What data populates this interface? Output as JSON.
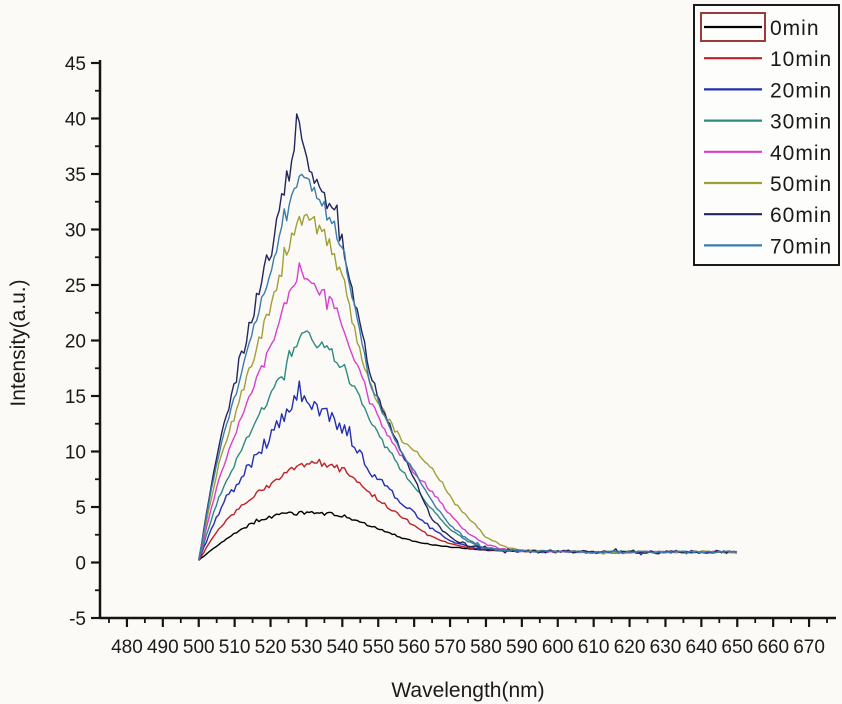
{
  "figure": {
    "background_color": "#fbfaf7",
    "axis_color": "#141414",
    "text_color": "#1a1a1a"
  },
  "legend": {
    "border_color": "#1a1a1a",
    "background_color": "#fdfdfb",
    "selected_index": 0,
    "selection_box_color": "#9e3a3a"
  },
  "chart_data": {
    "type": "line",
    "title": "",
    "xlabel": "Wavelength(nm)",
    "ylabel": "Intensity(a.u.)",
    "xlim": [
      472.5,
      677.5
    ],
    "ylim": [
      -5,
      45
    ],
    "x_ticks": [
      480,
      490,
      500,
      510,
      520,
      530,
      540,
      550,
      560,
      570,
      580,
      590,
      600,
      610,
      620,
      630,
      640,
      650,
      660,
      670
    ],
    "y_ticks": [
      -5,
      0,
      5,
      10,
      15,
      20,
      25,
      30,
      35,
      40,
      45
    ],
    "x_minor_step": 5,
    "y_minor_step": 2.5,
    "grid": false,
    "legend_position": "top-right",
    "data_x_range": [
      500,
      650
    ],
    "baseline_intensity": 1.0,
    "peak_wavelength_nm": 527,
    "x_nodes": [
      500,
      503,
      506,
      510,
      513,
      516,
      520,
      523,
      526,
      528,
      530,
      533,
      536,
      540,
      544,
      548,
      552,
      556,
      560,
      565,
      570,
      575,
      580,
      585,
      590,
      595,
      600,
      610,
      620,
      630,
      640,
      650
    ],
    "series": [
      {
        "name": "0min",
        "color": "#000000",
        "noise": 0.18,
        "peak": 4.5,
        "values": [
          0.2,
          1.0,
          1.7,
          2.6,
          3.2,
          3.7,
          4.1,
          4.3,
          4.4,
          4.4,
          4.5,
          4.5,
          4.4,
          4.2,
          3.8,
          3.3,
          2.8,
          2.3,
          1.9,
          1.6,
          1.4,
          1.25,
          1.1,
          1.05,
          1.0,
          1.0,
          1.0,
          0.95,
          0.95,
          0.95,
          0.95,
          0.95
        ]
      },
      {
        "name": "10min",
        "color": "#c02028",
        "noise": 0.3,
        "peak": 9.1,
        "values": [
          0.2,
          1.8,
          3.2,
          4.6,
          5.4,
          6.2,
          7.0,
          7.7,
          8.4,
          8.7,
          8.9,
          9.1,
          8.9,
          8.4,
          7.4,
          6.2,
          5.2,
          4.2,
          3.3,
          2.3,
          1.7,
          1.3,
          1.15,
          1.05,
          1.0,
          1.0,
          1.0,
          0.95,
          0.95,
          0.95,
          0.95,
          0.95
        ]
      },
      {
        "name": "20min",
        "color": "#2430b2",
        "noise": 0.9,
        "peak": 16.5,
        "values": [
          0.2,
          2.6,
          4.8,
          6.8,
          8.2,
          9.7,
          11.3,
          12.8,
          14.5,
          15.8,
          14.3,
          13.9,
          13.3,
          12.2,
          10.3,
          8.2,
          6.8,
          5.6,
          4.5,
          3.0,
          2.0,
          1.45,
          1.2,
          1.1,
          1.0,
          1.0,
          1.0,
          0.95,
          0.95,
          0.95,
          0.95,
          0.95
        ]
      },
      {
        "name": "30min",
        "color": "#2f8a80",
        "noise": 0.6,
        "peak": 20.4,
        "values": [
          0.2,
          3.3,
          6.2,
          8.9,
          10.9,
          12.9,
          15.1,
          17.1,
          19.1,
          20.0,
          20.3,
          19.9,
          19.3,
          17.8,
          15.2,
          12.4,
          10.5,
          8.6,
          6.8,
          4.7,
          3.0,
          1.9,
          1.3,
          1.1,
          1.05,
          1.0,
          1.0,
          0.95,
          0.95,
          0.95,
          0.95,
          0.95
        ]
      },
      {
        "name": "40min",
        "color": "#d840cc",
        "noise": 0.75,
        "peak": 27.3,
        "values": [
          0.2,
          4.3,
          7.9,
          11.3,
          13.9,
          16.3,
          19.3,
          22.1,
          24.9,
          26.4,
          25.3,
          24.7,
          23.7,
          21.6,
          17.9,
          14.3,
          12.0,
          9.9,
          8.1,
          6.4,
          4.3,
          2.6,
          1.6,
          1.2,
          1.05,
          1.0,
          1.0,
          0.95,
          0.95,
          0.95,
          0.95,
          0.95
        ]
      },
      {
        "name": "50min",
        "color": "#a0a038",
        "noise": 0.8,
        "peak": 31.4,
        "values": [
          0.2,
          5.1,
          9.3,
          13.3,
          16.3,
          19.3,
          22.9,
          26.1,
          29.1,
          30.6,
          31.2,
          30.3,
          29.0,
          25.8,
          20.3,
          15.8,
          13.2,
          11.3,
          10.0,
          8.6,
          6.0,
          4.0,
          2.3,
          1.4,
          1.1,
          1.05,
          1.0,
          0.95,
          0.95,
          0.95,
          0.95,
          0.95
        ]
      },
      {
        "name": "60min",
        "color": "#23265e",
        "noise": 1.3,
        "peak": 39.2,
        "values": [
          0.2,
          6.1,
          11.2,
          16.1,
          19.7,
          23.6,
          28.1,
          32.1,
          36.6,
          38.8,
          35.6,
          34.6,
          32.6,
          29.0,
          22.6,
          16.6,
          13.4,
          10.4,
          7.6,
          3.8,
          2.3,
          1.5,
          1.2,
          1.1,
          1.05,
          1.0,
          1.0,
          0.95,
          0.95,
          0.95,
          0.95,
          0.95
        ]
      },
      {
        "name": "70min",
        "color": "#3a7cab",
        "noise": 0.7,
        "peak": 35.6,
        "values": [
          0.2,
          5.7,
          10.4,
          14.9,
          18.3,
          21.9,
          26.1,
          29.6,
          33.1,
          35.2,
          34.1,
          33.1,
          31.6,
          28.5,
          22.1,
          15.9,
          12.9,
          10.2,
          8.2,
          5.5,
          3.4,
          2.0,
          1.3,
          1.1,
          1.05,
          1.0,
          1.0,
          0.95,
          0.95,
          0.95,
          0.95,
          0.95
        ]
      }
    ]
  }
}
